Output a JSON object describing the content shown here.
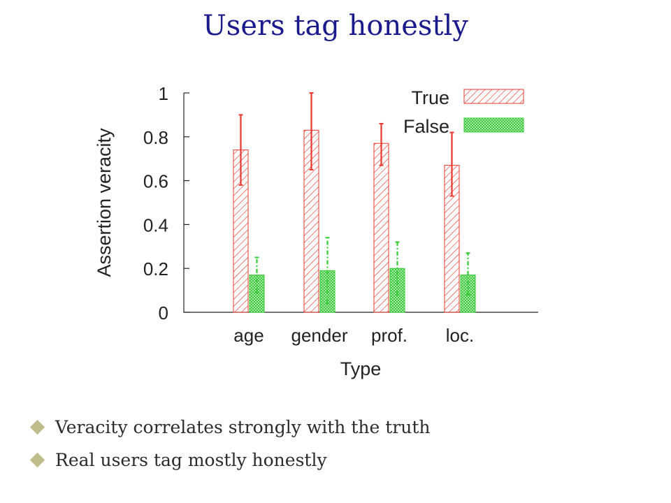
{
  "slide": {
    "title": "Users tag honestly",
    "title_color": "#1a1a8c"
  },
  "bullets": {
    "marker_color": "#bfbd8c",
    "items": [
      "Veracity correlates strongly with the truth",
      "Real users tag mostly honestly"
    ]
  },
  "chart_data": {
    "type": "bar",
    "xlabel": "Type",
    "ylabel": "Assertion veracity",
    "categories": [
      "age",
      "gender",
      "prof.",
      "loc."
    ],
    "ylim": [
      0,
      1
    ],
    "yticks": [
      0,
      0.2,
      0.4,
      0.6,
      0.8,
      1
    ],
    "ytick_labels": [
      "0",
      "0.2",
      "0.4",
      "0.6",
      "0.8",
      "1"
    ],
    "legend_position": "top-right",
    "grid": false,
    "series": [
      {
        "name": "True",
        "color": "#e8382e",
        "pattern": "diagonal-hatch",
        "values": [
          0.74,
          0.83,
          0.77,
          0.67
        ],
        "err_low": [
          0.58,
          0.65,
          0.67,
          0.53
        ],
        "err_high": [
          0.9,
          1.0,
          0.86,
          0.82
        ]
      },
      {
        "name": "False",
        "color": "#33cc33",
        "pattern": "crosshatch",
        "values": [
          0.17,
          0.19,
          0.2,
          0.17
        ],
        "err_low": [
          0.09,
          0.04,
          0.08,
          0.08
        ],
        "err_high": [
          0.25,
          0.34,
          0.32,
          0.27
        ]
      }
    ]
  }
}
